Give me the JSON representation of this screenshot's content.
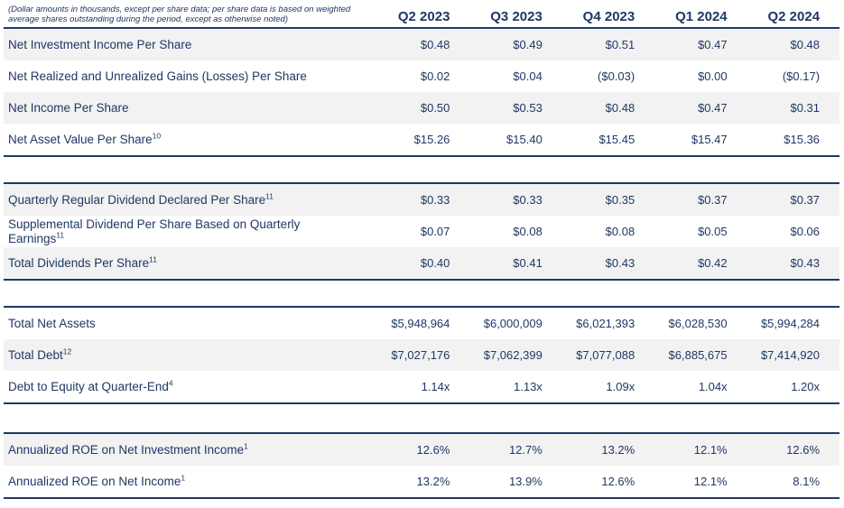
{
  "note": "(Dollar amounts in thousands, except per share data; per share data is based on weighted average shares outstanding during the period, except as otherwise noted)",
  "columns": [
    "Q2 2023",
    "Q3 2023",
    "Q4 2023",
    "Q1 2024",
    "Q2 2024"
  ],
  "colors": {
    "navy": "#1f3864",
    "row_shade": "#f2f2f2",
    "background": "#ffffff"
  },
  "sections": [
    {
      "rows": [
        {
          "label": "Net Investment Income Per Share",
          "sup": "",
          "values": [
            "$0.48",
            "$0.49",
            "$0.51",
            "$0.47",
            "$0.48"
          ]
        },
        {
          "label": "Net Realized and Unrealized Gains (Losses) Per Share",
          "sup": "",
          "values": [
            "$0.02",
            "$0.04",
            "($0.03)",
            "$0.00",
            "($0.17)"
          ]
        },
        {
          "label": "Net Income Per Share",
          "sup": "",
          "values": [
            "$0.50",
            "$0.53",
            "$0.48",
            "$0.47",
            "$0.31"
          ]
        },
        {
          "label": "Net Asset Value Per Share",
          "sup": "10",
          "values": [
            "$15.26",
            "$15.40",
            "$15.45",
            "$15.47",
            "$15.36"
          ]
        }
      ]
    },
    {
      "rows": [
        {
          "label": "Quarterly Regular Dividend Declared Per Share",
          "sup": "11",
          "values": [
            "$0.33",
            "$0.33",
            "$0.35",
            "$0.37",
            "$0.37"
          ]
        },
        {
          "label": "Supplemental Dividend Per Share Based on Quarterly Earnings",
          "sup": "11",
          "values": [
            "$0.07",
            "$0.08",
            "$0.08",
            "$0.05",
            "$0.06"
          ]
        },
        {
          "label": "Total Dividends Per Share",
          "sup": "11",
          "values": [
            "$0.40",
            "$0.41",
            "$0.43",
            "$0.42",
            "$0.43"
          ]
        }
      ]
    },
    {
      "rows": [
        {
          "label": "Total Net Assets",
          "sup": "",
          "values": [
            "$5,948,964",
            "$6,000,009",
            "$6,021,393",
            "$6,028,530",
            "$5,994,284"
          ]
        },
        {
          "label": "Total Debt",
          "sup": "12",
          "values": [
            "$7,027,176",
            "$7,062,399",
            "$7,077,088",
            "$6,885,675",
            "$7,414,920"
          ]
        },
        {
          "label": "Debt to Equity at Quarter-End",
          "sup": "4",
          "values": [
            "1.14x",
            "1.13x",
            "1.09x",
            "1.04x",
            "1.20x"
          ]
        }
      ]
    },
    {
      "rows": [
        {
          "label": "Annualized ROE on Net Investment Income",
          "sup": "1",
          "values": [
            "12.6%",
            "12.7%",
            "13.2%",
            "12.1%",
            "12.6%"
          ]
        },
        {
          "label": "Annualized ROE on Net Income",
          "sup": "1",
          "values": [
            "13.2%",
            "13.9%",
            "12.6%",
            "12.1%",
            "8.1%"
          ]
        }
      ]
    }
  ]
}
